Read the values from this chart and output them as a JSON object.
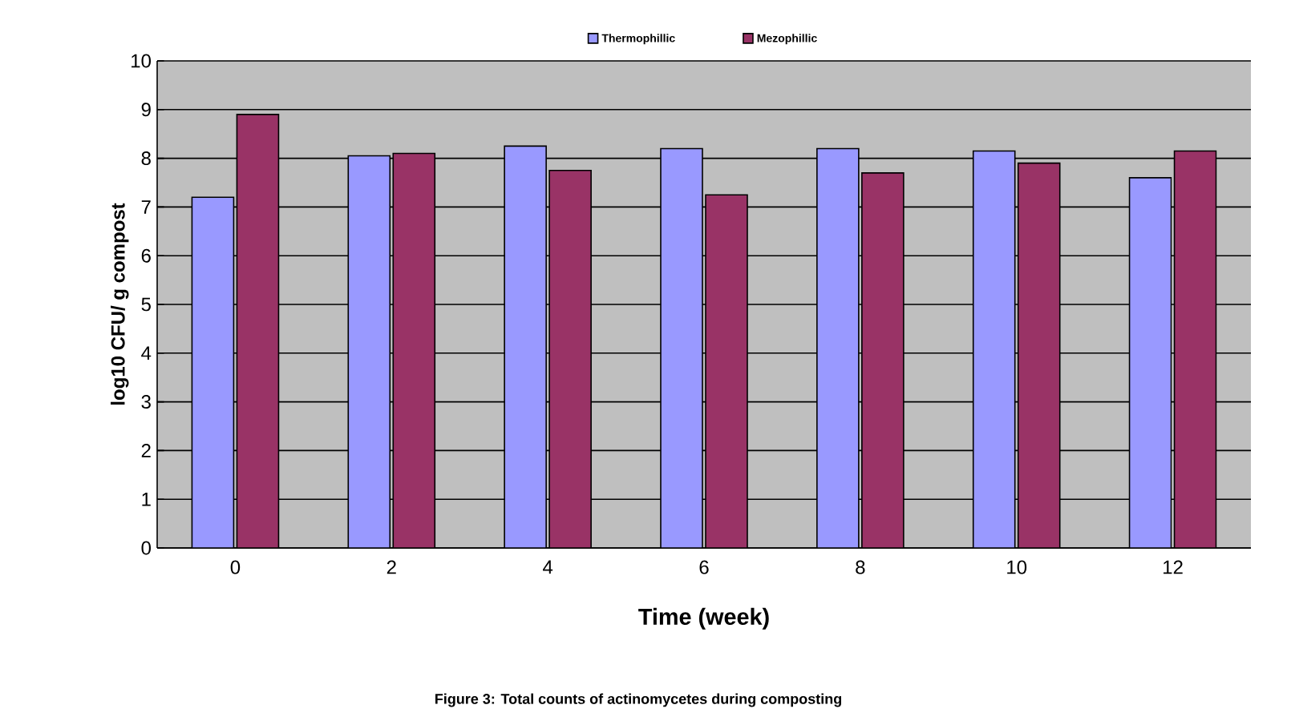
{
  "chart_data": {
    "type": "bar",
    "xlabel": "Time (week)",
    "ylabel": "log10 CFU/ g compost",
    "annotations": [
      "Figure 3: Total counts of actinomycetes during composting"
    ],
    "categories": [
      "0",
      "2",
      "4",
      "6",
      "8",
      "10",
      "12"
    ],
    "series": [
      {
        "name": "Thermophillic",
        "color": "#9999ff",
        "values": [
          7.2,
          8.05,
          8.25,
          8.2,
          8.2,
          8.15,
          7.6
        ]
      },
      {
        "name": "Mezophillic",
        "color": "#993366",
        "values": [
          8.9,
          8.1,
          7.75,
          7.25,
          7.7,
          7.9,
          8.15
        ]
      }
    ],
    "ylim": [
      0,
      10
    ],
    "yticks": [
      0,
      1,
      2,
      3,
      4,
      5,
      6,
      7,
      8,
      9,
      10
    ],
    "grid": "y",
    "legend": "top"
  }
}
